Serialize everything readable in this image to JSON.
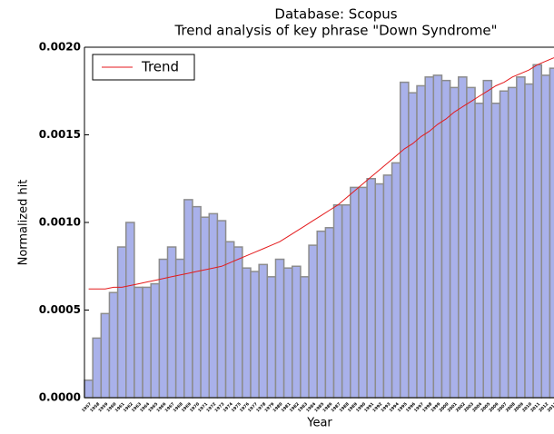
{
  "chart_data": {
    "type": "bar",
    "title": "Database: Scopus",
    "subtitle": "Trend analysis of key phrase \"Down Syndrome\"",
    "x_label": "Year",
    "y_label": "Normalized hit",
    "categories": [
      "1957",
      "1958",
      "1959",
      "1960",
      "1961",
      "1962",
      "1963",
      "1964",
      "1965",
      "1966",
      "1967",
      "1968",
      "1969",
      "1970",
      "1971",
      "1972",
      "1973",
      "1974",
      "1975",
      "1976",
      "1977",
      "1978",
      "1979",
      "1980",
      "1981",
      "1982",
      "1983",
      "1984",
      "1985",
      "1986",
      "1987",
      "1988",
      "1989",
      "1990",
      "1991",
      "1992",
      "1993",
      "1994",
      "1995",
      "1996",
      "1997",
      "1998",
      "1999",
      "2000",
      "2001",
      "2002",
      "2003",
      "2004",
      "2005",
      "2006",
      "2007",
      "2008",
      "2009",
      "2010",
      "2011",
      "2012",
      "2013"
    ],
    "values": [
      0.0001,
      0.00034,
      0.00048,
      0.0006,
      0.00086,
      0.001,
      0.00063,
      0.00063,
      0.00065,
      0.00079,
      0.00086,
      0.00079,
      0.00113,
      0.00109,
      0.00103,
      0.00105,
      0.00101,
      0.00089,
      0.00086,
      0.00074,
      0.00072,
      0.00076,
      0.00069,
      0.00079,
      0.00074,
      0.00075,
      0.00069,
      0.00087,
      0.00095,
      0.00097,
      0.0011,
      0.0011,
      0.0012,
      0.0012,
      0.00125,
      0.00122,
      0.00127,
      0.00134,
      0.0018,
      0.00174,
      0.00178,
      0.00183,
      0.00184,
      0.00181,
      0.00177,
      0.00183,
      0.00177,
      0.00168,
      0.00181,
      0.00168,
      0.00175,
      0.00177,
      0.00183,
      0.00179,
      0.0019,
      0.00184,
      0.00188
    ],
    "color": "#a9b1ea",
    "edge_color": "#8c8c8c",
    "series": [
      {
        "name": "Trend",
        "color": "#e41a1c",
        "values": [
          0.00062,
          0.00062,
          0.00062,
          0.00063,
          0.00063,
          0.00064,
          0.00065,
          0.00066,
          0.00067,
          0.00068,
          0.00069,
          0.0007,
          0.00071,
          0.00072,
          0.00073,
          0.00074,
          0.00075,
          0.00077,
          0.00079,
          0.00081,
          0.00083,
          0.00085,
          0.00087,
          0.00089,
          0.00092,
          0.00095,
          0.00098,
          0.00101,
          0.00104,
          0.00107,
          0.0011,
          0.00114,
          0.00118,
          0.00122,
          0.00126,
          0.0013,
          0.00134,
          0.00138,
          0.00142,
          0.00145,
          0.00149,
          0.00152,
          0.00156,
          0.00159,
          0.00163,
          0.00166,
          0.00169,
          0.00172,
          0.00175,
          0.00178,
          0.0018,
          0.00183,
          0.00185,
          0.00187,
          0.0019,
          0.00192,
          0.00194
        ]
      }
    ],
    "ylim": [
      0,
      0.002
    ],
    "yticks": [
      {
        "value": 0,
        "label": "0.0000"
      },
      {
        "value": 0.0005,
        "label": "0.0005"
      },
      {
        "value": 0.001,
        "label": "0.0010"
      },
      {
        "value": 0.0015,
        "label": "0.0015"
      },
      {
        "value": 0.002,
        "label": "0.0020"
      }
    ],
    "legend": "upper left"
  }
}
